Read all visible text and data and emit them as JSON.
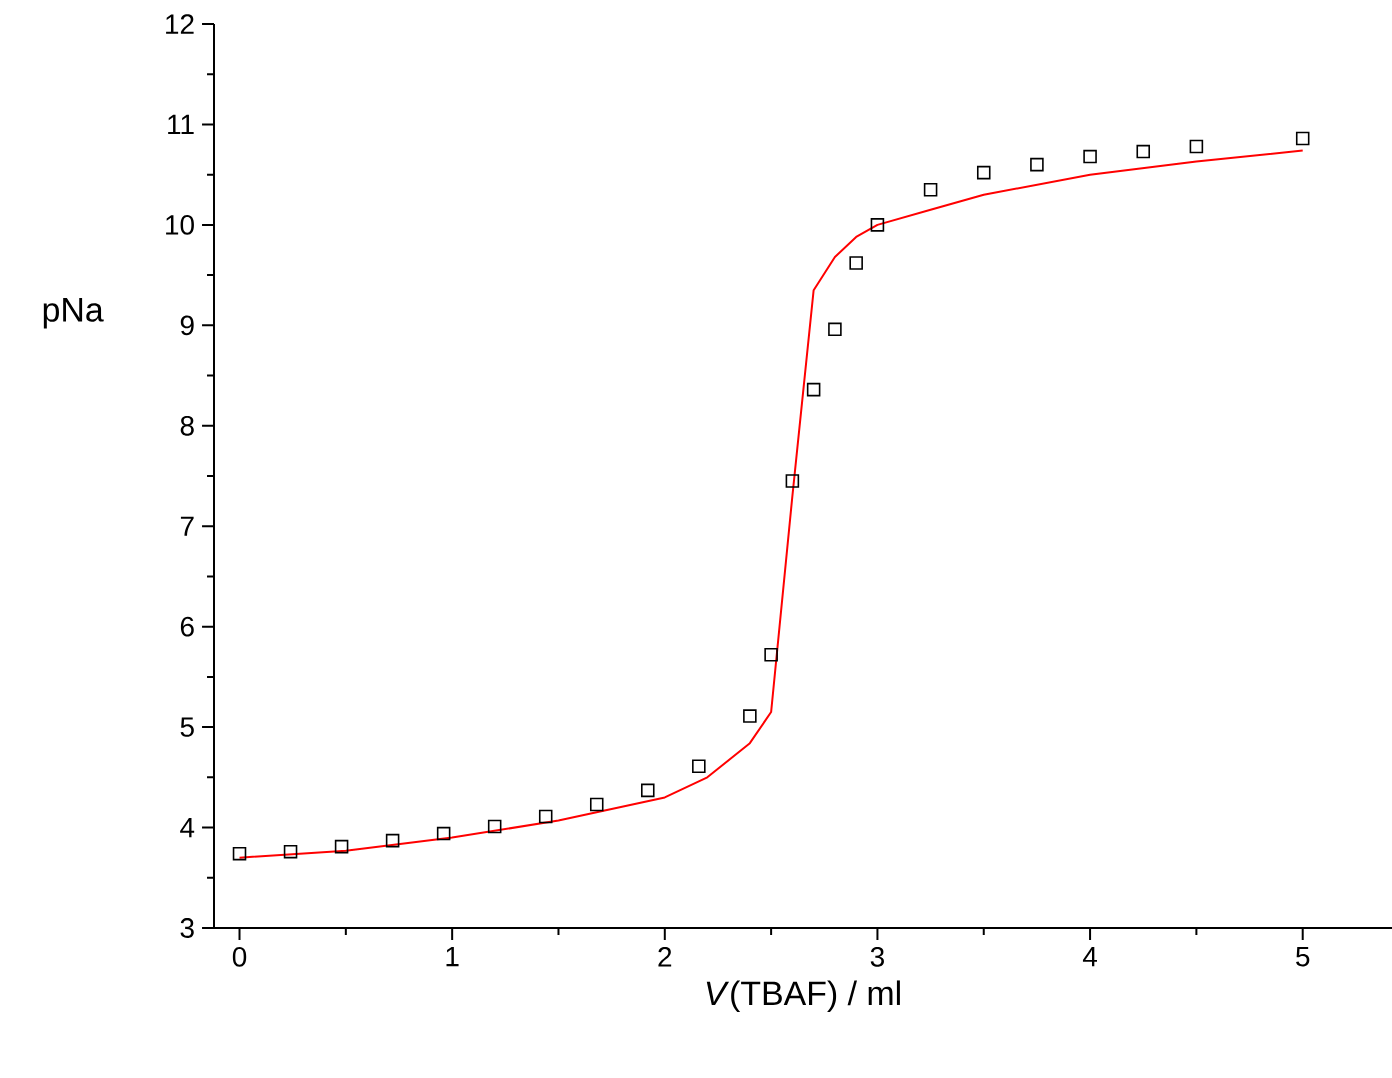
{
  "chart_data": {
    "type": "scatter",
    "xlabel": "*V*(TBAF) / ml",
    "ylabel": "pNa",
    "xlim": [
      -0.12,
      5.42
    ],
    "ylim": [
      3,
      12
    ],
    "xticks": [
      0,
      1,
      2,
      3,
      4,
      5
    ],
    "yticks": [
      3,
      4,
      5,
      6,
      7,
      8,
      9,
      10,
      11,
      12
    ],
    "grid": false,
    "series": [
      {
        "marker": "square",
        "color": "#000000",
        "x": [
          0,
          0.24,
          0.48,
          0.72,
          0.96,
          1.2,
          1.44,
          1.68,
          1.92,
          2.16,
          2.4,
          2.5,
          2.6,
          2.7,
          2.8,
          2.9,
          3.0,
          3.25,
          3.5,
          3.75,
          4.0,
          4.25,
          4.5,
          5.0
        ],
        "values": [
          3.74,
          3.76,
          3.81,
          3.87,
          3.94,
          4.01,
          4.11,
          4.23,
          4.37,
          4.61,
          5.11,
          5.72,
          7.45,
          8.36,
          8.96,
          9.62,
          10.0,
          10.35,
          10.52,
          10.6,
          10.68,
          10.73,
          10.78,
          10.86
        ]
      },
      {
        "type": "line",
        "marker": "none",
        "color": "#ff0000",
        "x": [
          0,
          0.5,
          1,
          1.5,
          2,
          2.2,
          2.4,
          2.5,
          2.6,
          2.7,
          2.8,
          2.9,
          3.0,
          3.25,
          3.5,
          4.0,
          4.5,
          5.0
        ],
        "values": [
          3.7,
          3.77,
          3.9,
          4.07,
          4.3,
          4.5,
          4.84,
          5.15,
          7.3,
          9.35,
          9.68,
          9.88,
          10.0,
          10.15,
          10.3,
          10.5,
          10.63,
          10.74
        ]
      }
    ]
  }
}
